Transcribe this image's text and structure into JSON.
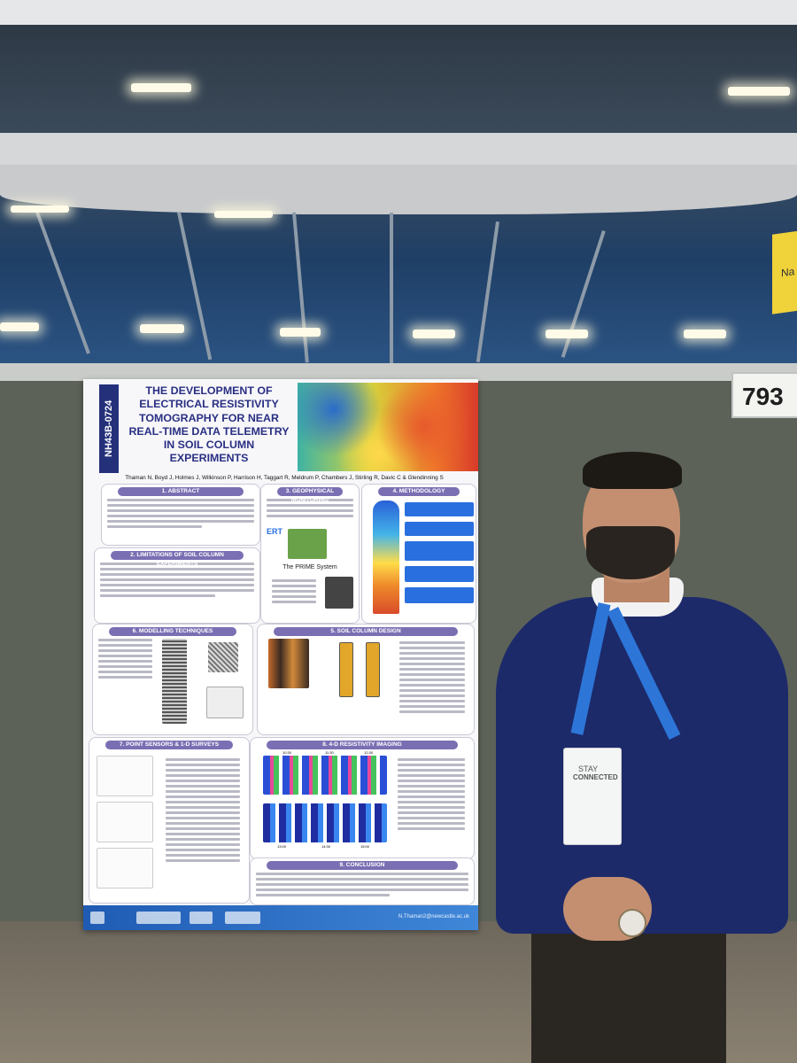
{
  "scene": {
    "booth_number": "793",
    "flag_text": "Na"
  },
  "poster": {
    "id": "NH43B-0724",
    "title": "THE DEVELOPMENT OF ELECTRICAL RESISTIVITY TOMOGRAPHY FOR NEAR REAL-TIME DATA TELEMETRY IN SOIL COLUMN EXPERIMENTS",
    "authors": "Thaman N, Boyd J, Holmes J, Wilkinson P, Harrison H, Taggart R, Meldrum P, Chambers J, Stirling R, Davic C & Glendinning S",
    "sections": {
      "abstract": "1. ABSTRACT",
      "limitations": "2. LIMITATIONS OF SOIL COLUMN EXPERIMENTS",
      "geophysical": "3. GEOPHYSICAL MONITORING",
      "methodology": "4. METHODOLOGY",
      "soil_column": "5. SOIL COLUMN DESIGN",
      "modelling": "6. MODELLING TECHNIQUES",
      "point_sensors": "7. POINT SENSORS & 1-D SURVEYS",
      "imaging": "8. 4-D RESISTIVITY IMAGING",
      "conclusion": "9. CONCLUSION"
    },
    "prime_label": "The PRIME System",
    "ert_label": "ERT",
    "imaging_times_top": [
      "10:30",
      "11:30",
      "12:30"
    ],
    "imaging_times_bottom": [
      "13:00",
      "14:30",
      "15:00"
    ],
    "email": "N.Thaman2@newcastle.ac.uk"
  },
  "person": {
    "badge_line1": "STAY",
    "badge_line2": "CONNECTED"
  }
}
